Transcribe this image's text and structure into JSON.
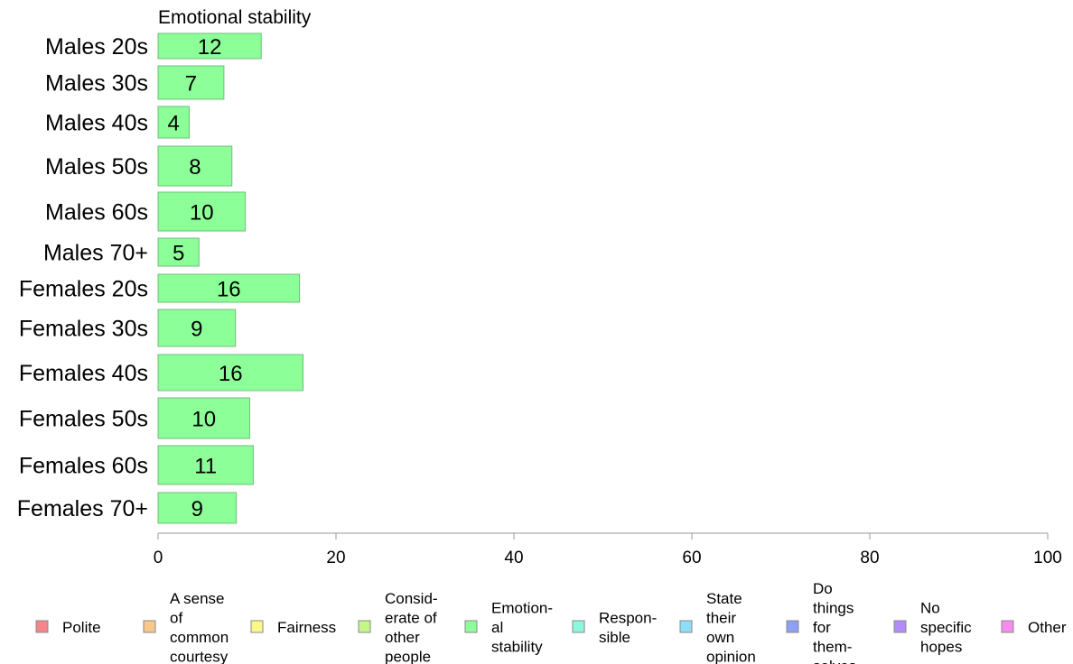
{
  "chart_data": {
    "type": "bar",
    "orientation": "horizontal",
    "title": "Emotional stability",
    "categories": [
      "Males 20s",
      "Males 30s",
      "Males 40s",
      "Males 50s",
      "Males 60s",
      "Males 70+",
      "Females 20s",
      "Females 30s",
      "Females 40s",
      "Females 50s",
      "Females 60s",
      "Females 70+"
    ],
    "values": [
      11.6,
      7.4,
      3.5,
      8.3,
      9.8,
      4.6,
      15.9,
      8.7,
      16.3,
      10.3,
      10.7,
      8.8
    ],
    "value_labels": [
      "12",
      "7",
      "4",
      "8",
      "10",
      "5",
      "16",
      "9",
      "16",
      "10",
      "11",
      "9"
    ],
    "bar_color": "#8cff99",
    "bar_stroke": "#6fbf78",
    "xlim": [
      0,
      100
    ],
    "xticks": [
      "0",
      "20",
      "40",
      "60",
      "80",
      "100"
    ],
    "grid": false,
    "legend_position": "bottom",
    "legend": [
      {
        "lines": [
          "Polite"
        ],
        "color": "#f4868a"
      },
      {
        "lines": [
          "A sense",
          "of",
          "common",
          "courtesy"
        ],
        "color": "#f9c78a"
      },
      {
        "lines": [
          "Fairness"
        ],
        "color": "#fdf78a"
      },
      {
        "lines": [
          "Consid-",
          "erate of",
          "other",
          "people"
        ],
        "color": "#c4f78a"
      },
      {
        "lines": [
          "Emotion-",
          "al",
          "stability"
        ],
        "color": "#8cff99"
      },
      {
        "lines": [
          "Respon-",
          "sible"
        ],
        "color": "#8cf7df"
      },
      {
        "lines": [
          "State",
          "their",
          "own",
          "opinion"
        ],
        "color": "#8cdff7"
      },
      {
        "lines": [
          "Do",
          "things",
          "for",
          "them-",
          "selves"
        ],
        "color": "#8ca0f7"
      },
      {
        "lines": [
          "No",
          "specific",
          "hopes"
        ],
        "color": "#b48cf7"
      },
      {
        "lines": [
          "Other"
        ],
        "color": "#f78cf0"
      }
    ]
  }
}
